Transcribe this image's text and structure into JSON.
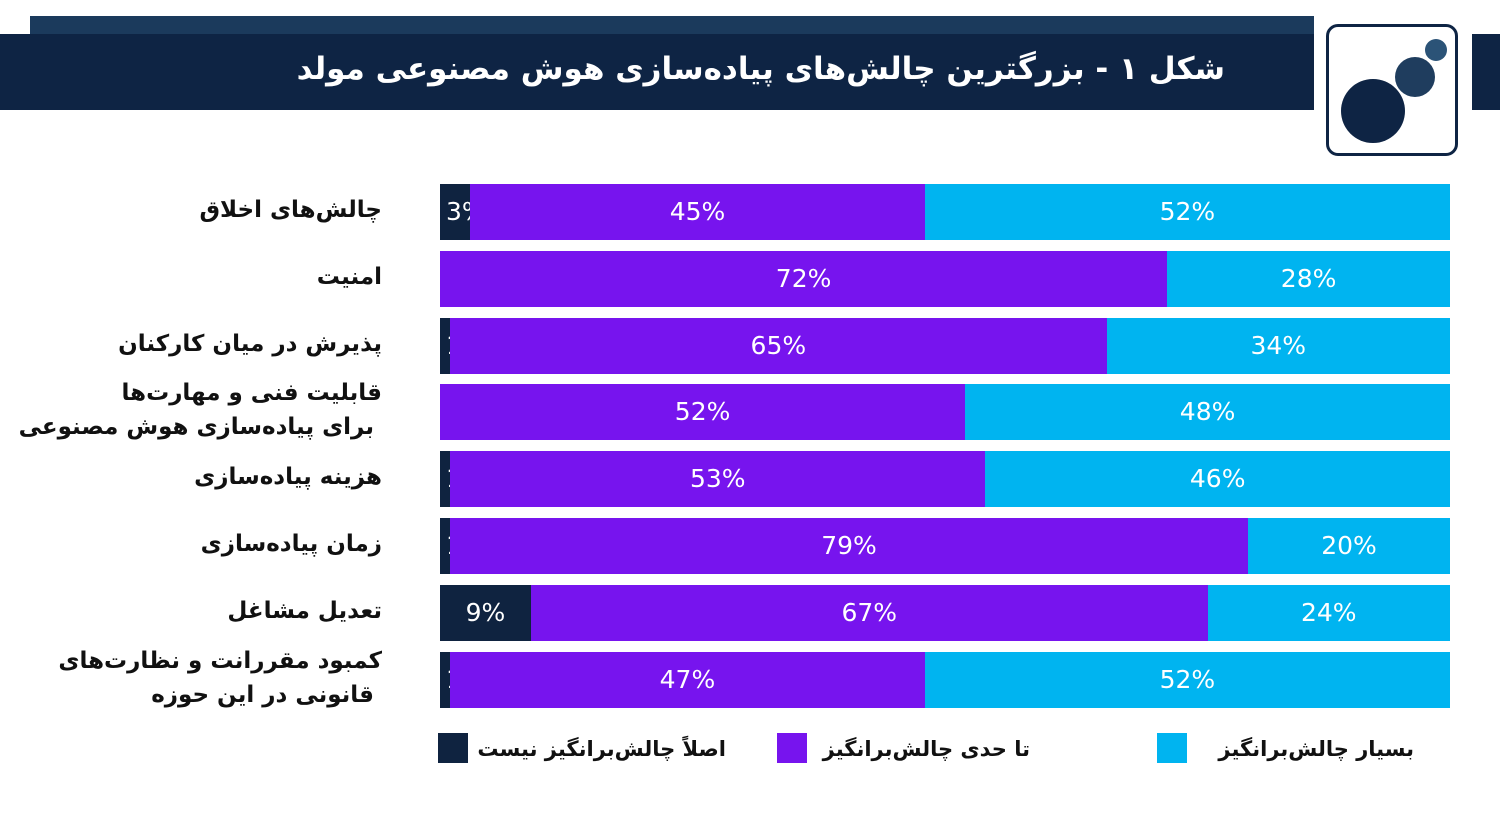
{
  "header": {
    "title": "شکل ۱ - بزرگترین چالش‌های پیاده‌سازی هوش مصنوعی مولد"
  },
  "colors": {
    "header_bg": "#0e2444",
    "not_challenging": "#0f2340",
    "somewhat": "#7714ee",
    "very": "#00b4f0"
  },
  "chart_data": {
    "type": "bar",
    "orientation": "horizontal-stacked",
    "title": "شکل ۱ - بزرگترین چالش‌های پیاده‌سازی هوش مصنوعی مولد",
    "categories": [
      "چالش‌های اخلاق",
      "امنیت",
      "پذیرش در میان کارکنان",
      "قابلیت فنی و مهارت‌ها برای پیاده‌سازی هوش مصنوعی",
      "هزینه پیاده‌سازی",
      "زمان پیاده‌سازی",
      "تعدیل مشاغل",
      "کمبود مقررانت و نظارت‌های قانونی در این حوزه"
    ],
    "category_lines": [
      [
        "چالش‌های اخلاق"
      ],
      [
        "امنیت"
      ],
      [
        "پذیرش در میان کارکنان"
      ],
      [
        "قابلیت فنی و مهارت‌ها",
        "برای پیاده‌سازی هوش مصنوعی"
      ],
      [
        "هزینه پیاده‌سازی"
      ],
      [
        "زمان پیاده‌سازی"
      ],
      [
        "تعدیل مشاغل"
      ],
      [
        "کمبود مقررانت و نظارت‌های",
        "قانونی در این حوزه"
      ]
    ],
    "series": [
      {
        "name": "اصلاً چالش‌برانگیز نیست",
        "color": "#0f2340",
        "values": [
          3,
          0,
          1,
          0,
          1,
          1,
          9,
          1
        ]
      },
      {
        "name": "تا حدی چالش‌برانگیز",
        "color": "#7714ee",
        "values": [
          45,
          72,
          65,
          52,
          53,
          79,
          67,
          47
        ]
      },
      {
        "name": "بسیار چالش‌برانگیز",
        "color": "#00b4f0",
        "values": [
          52,
          28,
          34,
          48,
          46,
          20,
          24,
          52
        ]
      }
    ],
    "value_suffix": "%",
    "xlim": [
      0,
      100
    ],
    "legend_position": "bottom"
  }
}
